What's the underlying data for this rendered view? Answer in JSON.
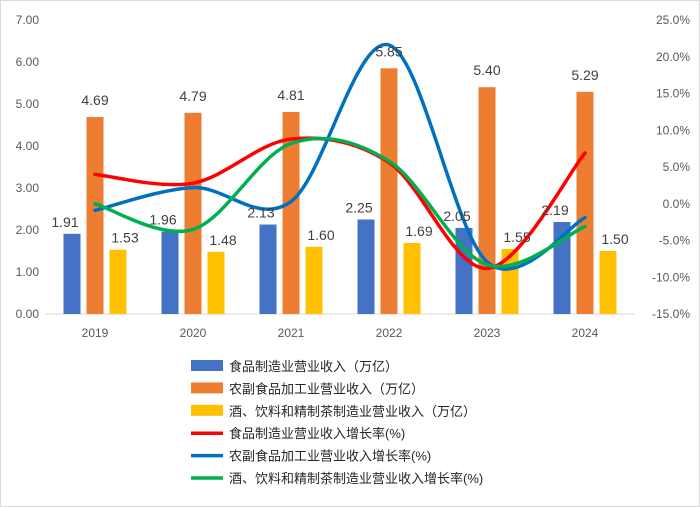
{
  "chart_data": {
    "type": "bar",
    "categories": [
      "2019",
      "2020",
      "2021",
      "2022",
      "2023",
      "2024"
    ],
    "y_left": {
      "ylim": [
        0,
        7
      ],
      "ticks": [
        "0.00",
        "1.00",
        "2.00",
        "3.00",
        "4.00",
        "5.00",
        "6.00",
        "7.00"
      ]
    },
    "y_right": {
      "ylim": [
        -15,
        25
      ],
      "ticks": [
        "-15.0%",
        "-10.0%",
        "-5.0%",
        "0.0%",
        "5.0%",
        "10.0%",
        "15.0%",
        "20.0%",
        "25.0%"
      ]
    },
    "bar_series": [
      {
        "name": "食品制造业营业收入（万亿）",
        "color": "#4472c4",
        "values": [
          1.91,
          1.96,
          2.13,
          2.25,
          2.05,
          2.19
        ],
        "labels": [
          "1.91",
          "1.96",
          "2.13",
          "2.25",
          "2.05",
          "2.19"
        ]
      },
      {
        "name": "农副食品加工业营业收入（万亿）",
        "color": "#ed7d31",
        "values": [
          4.69,
          4.79,
          4.81,
          5.85,
          5.4,
          5.29
        ],
        "labels": [
          "4.69",
          "4.79",
          "4.81",
          "5.85",
          "5.40",
          "5.29"
        ]
      },
      {
        "name": "酒、饮料和精制茶制造业营业收入（万亿）",
        "color": "#ffc000",
        "values": [
          1.53,
          1.48,
          1.6,
          1.69,
          1.55,
          1.5
        ],
        "labels": [
          "1.53",
          "1.48",
          "1.60",
          "1.69",
          "1.55",
          "1.50"
        ]
      }
    ],
    "line_series": [
      {
        "name": "食品制造业营业收入增长率(%)",
        "color": "#ff0000",
        "axis": "right",
        "values": [
          4.0,
          2.8,
          8.8,
          5.6,
          -8.8,
          6.9
        ]
      },
      {
        "name": "农副食品加工业营业收入增长率(%)",
        "color": "#0070c0",
        "axis": "right",
        "values": [
          -0.9,
          2.2,
          0.3,
          21.6,
          -7.9,
          -1.9
        ]
      },
      {
        "name": "酒、饮料和精制茶制造业营业收入增长率(%)",
        "color": "#00b050",
        "axis": "right",
        "values": [
          0.0,
          -3.5,
          8.2,
          5.8,
          -8.3,
          -3.1
        ]
      }
    ],
    "grid": false,
    "legend_position": "bottom"
  }
}
